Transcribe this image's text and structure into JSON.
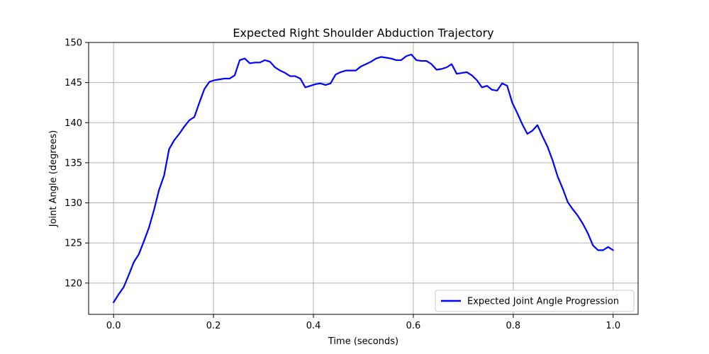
{
  "chart_data": {
    "type": "line",
    "title": "Expected Right Shoulder Abduction Trajectory",
    "xlabel": "Time (seconds)",
    "ylabel": "Joint Angle (degrees)",
    "xlim": [
      -0.05,
      1.05
    ],
    "ylim": [
      116.1,
      150
    ],
    "xticks": [
      0.0,
      0.2,
      0.4,
      0.6,
      0.8,
      1.0
    ],
    "xtick_labels": [
      "0.0",
      "0.2",
      "0.4",
      "0.6",
      "0.8",
      "1.0"
    ],
    "yticks": [
      120,
      125,
      130,
      135,
      140,
      145,
      150
    ],
    "ytick_labels": [
      "120",
      "125",
      "130",
      "135",
      "140",
      "145",
      "150"
    ],
    "grid": true,
    "legend_position": "lower-right",
    "series": [
      {
        "name": "Expected Joint Angle Progression",
        "color": "#0000ff",
        "x": [
          0.0,
          0.0101,
          0.0202,
          0.0303,
          0.0404,
          0.0505,
          0.0606,
          0.0707,
          0.0808,
          0.0909,
          0.101,
          0.1111,
          0.1212,
          0.1313,
          0.1414,
          0.1515,
          0.1616,
          0.1717,
          0.1818,
          0.1919,
          0.202,
          0.2121,
          0.2222,
          0.2323,
          0.2424,
          0.2525,
          0.2626,
          0.2727,
          0.2828,
          0.2929,
          0.303,
          0.3131,
          0.3232,
          0.3333,
          0.3434,
          0.3535,
          0.3636,
          0.3737,
          0.3838,
          0.3939,
          0.404,
          0.4141,
          0.4242,
          0.4343,
          0.4444,
          0.4545,
          0.4646,
          0.4747,
          0.4848,
          0.4949,
          0.5051,
          0.5152,
          0.5253,
          0.5354,
          0.5455,
          0.5556,
          0.5657,
          0.5758,
          0.5859,
          0.596,
          0.6061,
          0.6162,
          0.6263,
          0.6364,
          0.6465,
          0.6566,
          0.6667,
          0.6768,
          0.6869,
          0.697,
          0.7071,
          0.7172,
          0.7273,
          0.7374,
          0.7475,
          0.7576,
          0.7677,
          0.7778,
          0.7879,
          0.798,
          0.8081,
          0.8182,
          0.8283,
          0.8384,
          0.8485,
          0.8586,
          0.8687,
          0.8788,
          0.8889,
          0.899,
          0.9091,
          0.9192,
          0.9293,
          0.9394,
          0.9495,
          0.9596,
          0.9697,
          0.9798,
          0.9899,
          1.0
        ],
        "values": [
          117.6,
          118.6,
          119.5,
          121.0,
          122.6,
          123.6,
          125.2,
          126.9,
          129.1,
          131.6,
          133.4,
          136.7,
          137.8,
          138.6,
          139.5,
          140.3,
          140.7,
          142.5,
          144.2,
          145.1,
          145.3,
          145.4,
          145.5,
          145.5,
          145.9,
          147.8,
          148.0,
          147.4,
          147.5,
          147.5,
          147.8,
          147.6,
          146.9,
          146.5,
          146.2,
          145.8,
          145.8,
          145.5,
          144.4,
          144.6,
          144.8,
          144.9,
          144.7,
          144.9,
          146.0,
          146.3,
          146.5,
          146.5,
          146.5,
          147.0,
          147.3,
          147.6,
          148.0,
          148.2,
          148.1,
          148.0,
          147.8,
          147.8,
          148.3,
          148.5,
          147.8,
          147.7,
          147.7,
          147.3,
          146.6,
          146.7,
          146.9,
          147.3,
          146.1,
          146.2,
          146.3,
          145.9,
          145.3,
          144.4,
          144.6,
          144.1,
          144.0,
          144.9,
          144.6,
          142.5,
          141.2,
          139.8,
          138.6,
          139.0,
          139.7,
          138.3,
          137.0,
          135.3,
          133.3,
          131.8,
          130.1,
          129.2,
          128.4,
          127.4,
          126.2,
          124.7,
          124.1,
          124.1,
          124.5,
          124.1
        ]
      }
    ]
  }
}
